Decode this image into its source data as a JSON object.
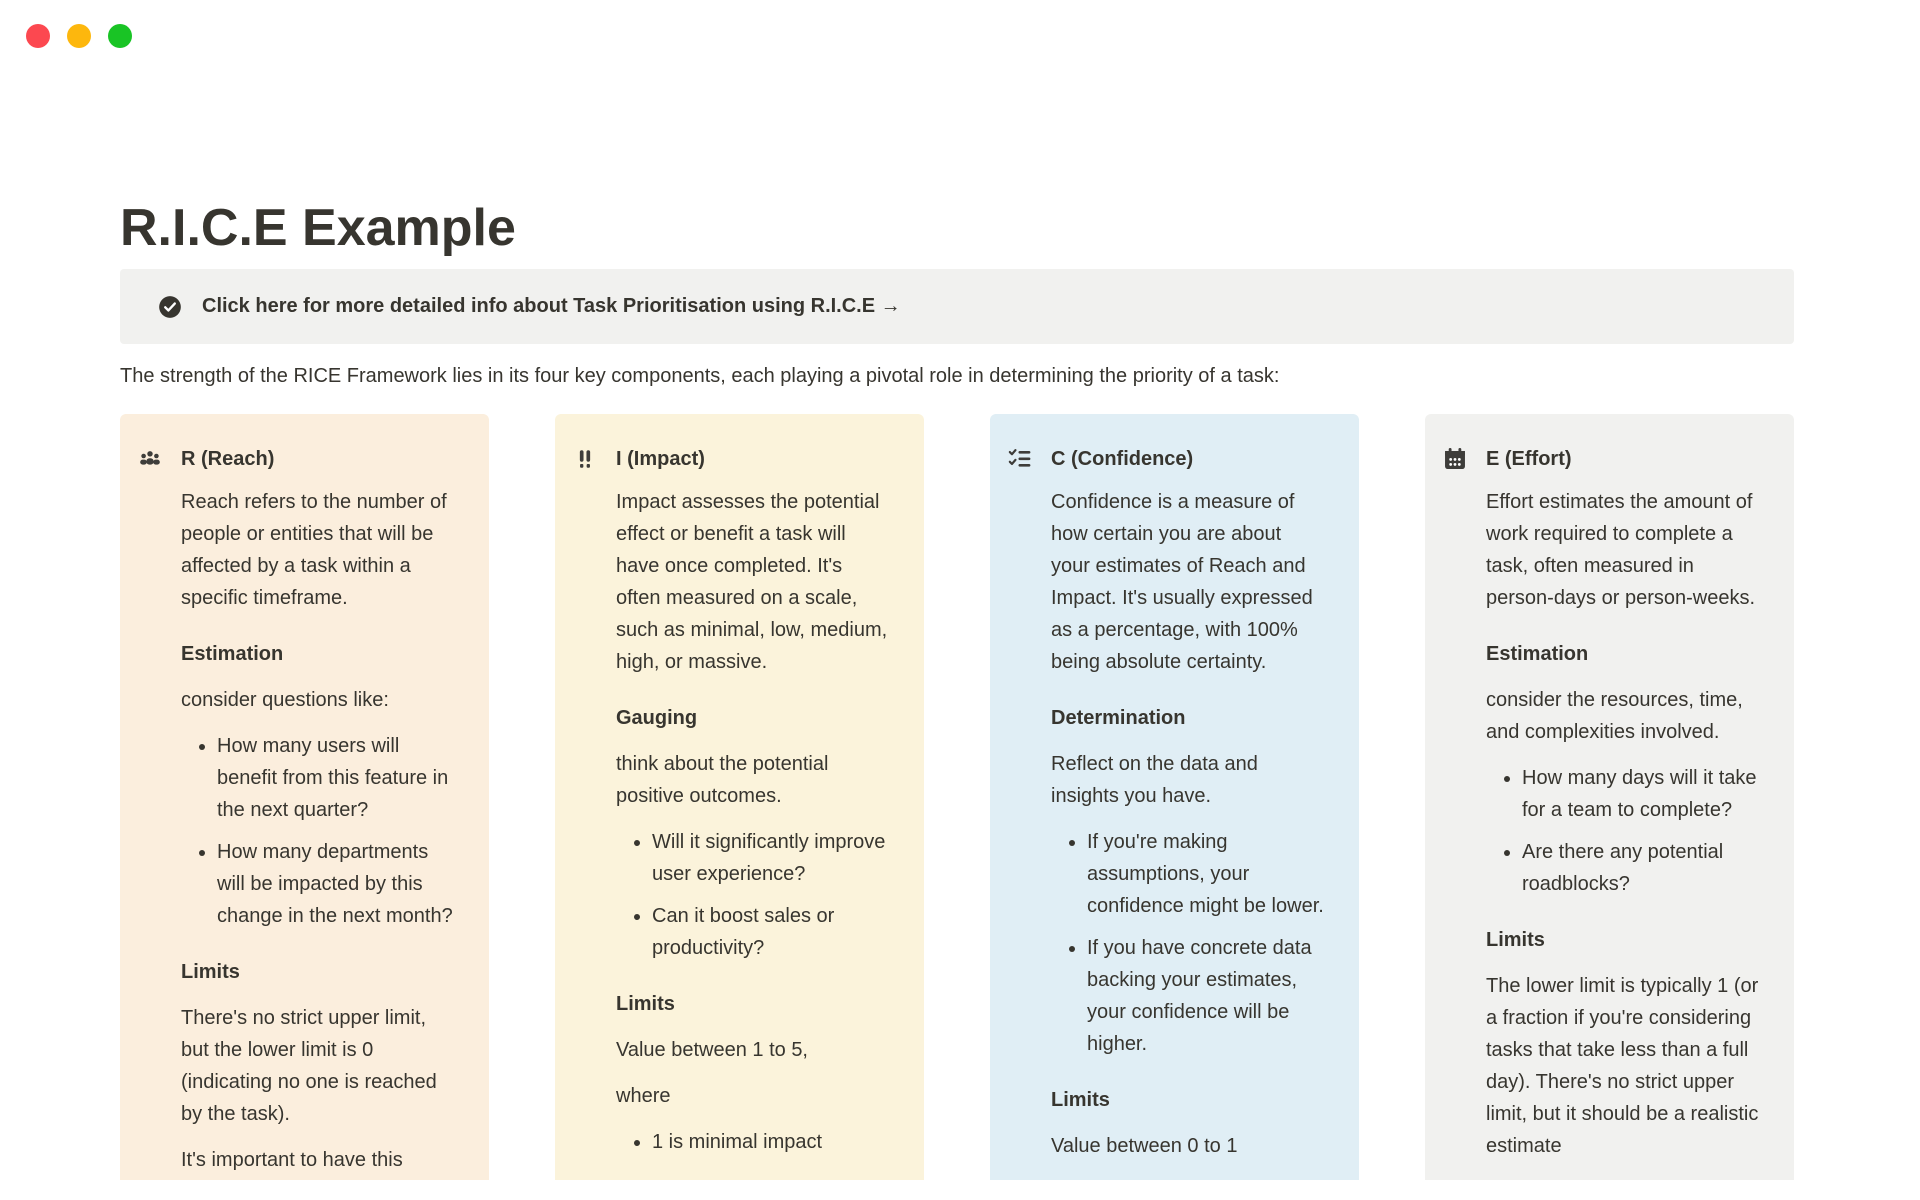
{
  "window": {
    "controls": [
      {
        "name": "close",
        "color": "#fc4850"
      },
      {
        "name": "minimize",
        "color": "#fdb70d"
      },
      {
        "name": "zoom",
        "color": "#19c425"
      }
    ]
  },
  "page": {
    "title": "R.I.C.E Example",
    "intro": "The strength of the RICE Framework lies in its four key components, each playing a pivotal role in determining the priority of a task:"
  },
  "callout": {
    "icon": "check-circle-icon",
    "icon_color": "#37352f",
    "background": "#f1f1ef",
    "text": "Click here for more detailed info about Task Prioritisation using R.I.C.E →"
  },
  "columns": [
    {
      "id": "reach",
      "icon": "users-icon",
      "background": "#fbeedd",
      "title": "R (Reach)",
      "blocks": [
        {
          "type": "p",
          "text": "Reach refers to the number of people or entities that will be affected by a task within a specific timeframe."
        },
        {
          "type": "h",
          "text": "Estimation"
        },
        {
          "type": "p",
          "text": "consider questions like:"
        },
        {
          "type": "ul",
          "items": [
            "How many users will benefit from this feature in the next quarter?",
            "How many departments will be impacted by this change in the next month?"
          ]
        },
        {
          "type": "h",
          "text": "Limits"
        },
        {
          "type": "p",
          "text": "There's no strict upper limit, but the lower limit is 0 (indicating no one is reached by the task)."
        },
        {
          "type": "p",
          "text": "It's important to have this number backed up by data"
        }
      ]
    },
    {
      "id": "impact",
      "icon": "double-exclamation-icon",
      "background": "#fbf3db",
      "title": "I (Impact)",
      "blocks": [
        {
          "type": "p",
          "text": "Impact assesses the potential effect or benefit a task will have once completed. It's often measured on a scale, such as minimal, low, medium, high, or massive."
        },
        {
          "type": "h",
          "text": "Gauging"
        },
        {
          "type": "p",
          "text": "think about the potential positive outcomes."
        },
        {
          "type": "ul",
          "items": [
            "Will it significantly improve user experience?",
            "Can it boost sales or productivity?"
          ]
        },
        {
          "type": "h",
          "text": "Limits"
        },
        {
          "type": "p",
          "text": "Value between 1 to 5,"
        },
        {
          "type": "p",
          "text": "where"
        },
        {
          "type": "ul",
          "items": [
            "1 is minimal impact"
          ]
        }
      ]
    },
    {
      "id": "confidence",
      "icon": "checklist-icon",
      "background": "#e0eef5",
      "title": "C (Confidence)",
      "blocks": [
        {
          "type": "p",
          "text": "Confidence is a measure of how certain you are about your estimates of Reach and Impact. It's usually expressed as a percentage, with 100% being absolute certainty."
        },
        {
          "type": "h",
          "text": "Determination"
        },
        {
          "type": "p",
          "text": "Reflect on the data and insights you have."
        },
        {
          "type": "ul",
          "items": [
            "If you're making assumptions, your confidence might be lower.",
            "If you have concrete data backing your estimates, your confidence will be higher."
          ]
        },
        {
          "type": "h",
          "text": "Limits"
        },
        {
          "type": "p",
          "text": "Value between 0 to 1"
        }
      ]
    },
    {
      "id": "effort",
      "icon": "calendar-icon",
      "background": "#f1f1ef",
      "title": "E (Effort)",
      "blocks": [
        {
          "type": "p",
          "text": "Effort estimates the amount of work required to complete a task, often measured in person-days or person-weeks."
        },
        {
          "type": "h",
          "text": "Estimation"
        },
        {
          "type": "p",
          "text": "consider the resources, time, and complexities involved."
        },
        {
          "type": "ul",
          "items": [
            "How many days will it take for a team to complete?",
            "Are there any potential roadblocks?"
          ]
        },
        {
          "type": "h",
          "text": "Limits"
        },
        {
          "type": "p",
          "text": "The lower limit is typically 1 (or a fraction if you're considering tasks that take less than a full day). There's no strict upper limit, but it should be a realistic estimate"
        }
      ]
    }
  ]
}
